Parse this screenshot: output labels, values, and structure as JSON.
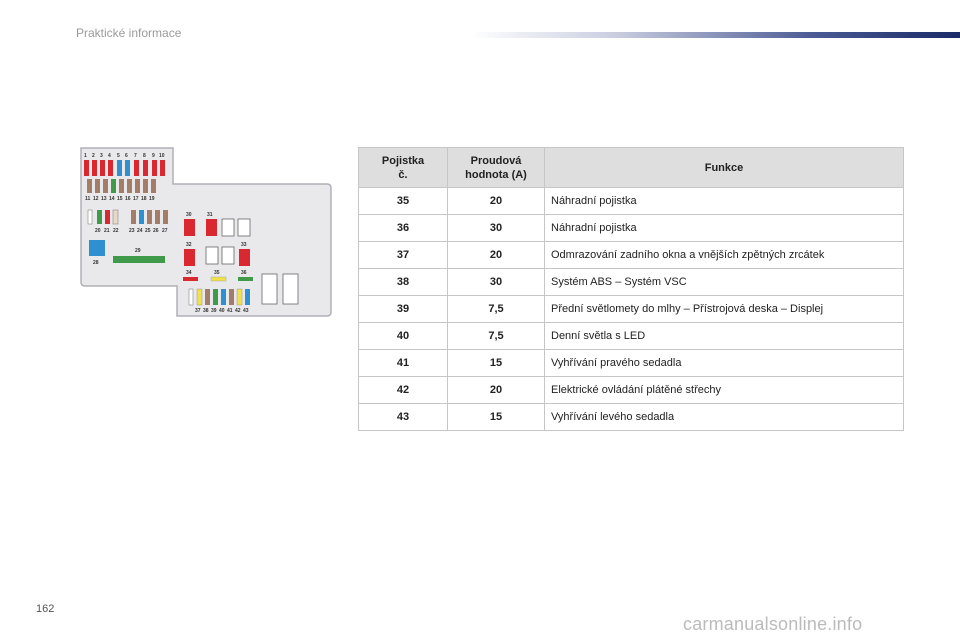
{
  "header": {
    "title": "Praktické informace"
  },
  "page_number": "162",
  "watermark": "carmanualsonline.info",
  "diagram": {
    "top_row_numbers": [
      "1",
      "2",
      "3",
      "4",
      "5",
      "6",
      "7",
      "8",
      "9",
      "10"
    ],
    "second_row_numbers": [
      "11",
      "12",
      "13",
      "14",
      "15",
      "16",
      "17",
      "18",
      "19"
    ],
    "third_row_left_numbers": [
      "20",
      "21",
      "22"
    ],
    "third_row_mid_numbers": [
      "23",
      "24",
      "25",
      "26",
      "27"
    ],
    "label_28": "28",
    "label_29": "29",
    "label_30": "30",
    "label_31": "31",
    "label_32": "32",
    "label_33": "33",
    "label_34": "34",
    "label_35": "35",
    "label_36": "36",
    "bottom_numbers": [
      "37",
      "38",
      "39",
      "40",
      "41",
      "42",
      "43"
    ]
  },
  "table": {
    "headers": {
      "number_line1": "Pojistka",
      "number_line2": "č.",
      "rating_line1": "Proudová",
      "rating_line2": "hodnota (A)",
      "function": "Funkce"
    },
    "rows": [
      {
        "number": "35",
        "rating": "20",
        "function": "Náhradní pojistka"
      },
      {
        "number": "36",
        "rating": "30",
        "function": "Náhradní pojistka"
      },
      {
        "number": "37",
        "rating": "20",
        "function": "Odmrazování zadního okna a vnějších zpětných zrcátek"
      },
      {
        "number": "38",
        "rating": "30",
        "function": "Systém ABS – Systém VSC"
      },
      {
        "number": "39",
        "rating": "7,5",
        "function": "Přední světlomety do mlhy – Přístrojová deska – Displej"
      },
      {
        "number": "40",
        "rating": "7,5",
        "function": "Denní světla s LED"
      },
      {
        "number": "41",
        "rating": "15",
        "function": "Vyhřívání pravého sedadla"
      },
      {
        "number": "42",
        "rating": "20",
        "function": "Elektrické ovládání plátěné střechy"
      },
      {
        "number": "43",
        "rating": "15",
        "function": "Vyhřívání levého sedadla"
      }
    ]
  },
  "colors": {
    "fuse_red": "#d9282f",
    "fuse_blue": "#2f8fcf",
    "fuse_green": "#3f9a4a",
    "fuse_yellow": "#f1e14a",
    "fuse_gray": "#b8b8b8",
    "fuse_brown": "#a37d68",
    "box_fill": "#e9e9eb"
  }
}
